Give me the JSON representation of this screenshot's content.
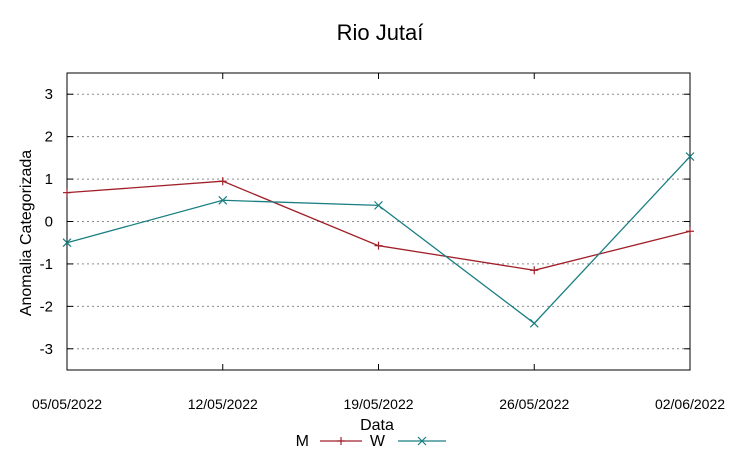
{
  "chart_data": {
    "type": "line",
    "title": "Rio Jutaí",
    "xlabel": "Data",
    "ylabel": "Anomalia Categorizada",
    "categories": [
      "05/05/2022",
      "12/05/2022",
      "19/05/2022",
      "26/05/2022",
      "02/06/2022"
    ],
    "y_ticks": [
      "3",
      "2",
      "1",
      "0",
      "-1",
      "-2",
      "-3"
    ],
    "ylim": [
      -3.5,
      3.5
    ],
    "grid": true,
    "legend_position": "bottom-center",
    "series": [
      {
        "name": "M",
        "color": "#a0202a",
        "marker": "plus",
        "values": [
          0.68,
          0.95,
          -0.57,
          -1.15,
          -0.23
        ]
      },
      {
        "name": "W",
        "color": "#1b7f82",
        "marker": "cross",
        "values": [
          -0.5,
          0.5,
          0.38,
          -2.4,
          1.53
        ]
      }
    ]
  }
}
